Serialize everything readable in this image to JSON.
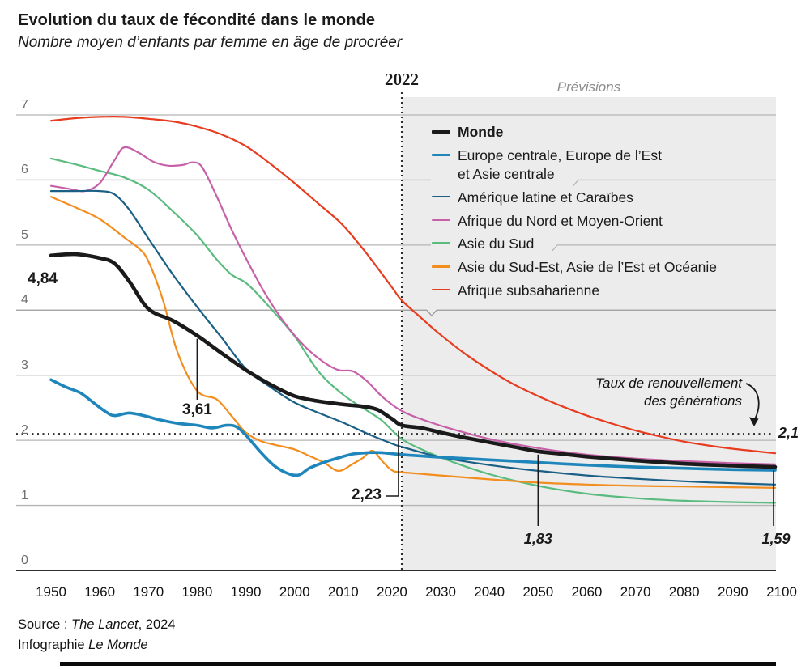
{
  "header": {
    "title": "Evolution du taux de fécondité dans le monde",
    "subtitle": "Nombre moyen d’enfants par femme en âge de procréer"
  },
  "chart_data": {
    "type": "line",
    "title": "Evolution du taux de fécondité dans le monde",
    "subtitle": "Nombre moyen d’enfants par femme en âge de procréer",
    "x_axis": {
      "range": [
        1950,
        2100
      ],
      "ticks": [
        1950,
        1960,
        1970,
        1980,
        1990,
        2000,
        2010,
        2020,
        2030,
        2040,
        2050,
        2060,
        2070,
        2080,
        2090,
        2100
      ]
    },
    "y_axis": {
      "range": [
        0,
        7
      ],
      "ticks": [
        0,
        1,
        2,
        3,
        4,
        5,
        6,
        7
      ]
    },
    "grid": true,
    "forecast": {
      "marker_year_label": "2022",
      "start_year": 2022,
      "zone_label": "Prévisions"
    },
    "replacement_rate": {
      "value": 2.1,
      "value_label": "2,1",
      "note": "Taux de renouvellement\ndes générations"
    },
    "series": [
      {
        "name": "Afrique subsaharienne",
        "slug": "afrique-subsaharienne",
        "color": "#e73c1f",
        "width": 2.2,
        "points": [
          [
            1950,
            6.91
          ],
          [
            1955,
            6.95
          ],
          [
            1960,
            6.97
          ],
          [
            1965,
            6.97
          ],
          [
            1970,
            6.94
          ],
          [
            1975,
            6.9
          ],
          [
            1980,
            6.82
          ],
          [
            1985,
            6.7
          ],
          [
            1990,
            6.52
          ],
          [
            1995,
            6.25
          ],
          [
            2000,
            5.95
          ],
          [
            2005,
            5.63
          ],
          [
            2010,
            5.3
          ],
          [
            2015,
            4.85
          ],
          [
            2020,
            4.35
          ],
          [
            2022,
            4.15
          ],
          [
            2026,
            3.88
          ],
          [
            2030,
            3.62
          ],
          [
            2035,
            3.33
          ],
          [
            2040,
            3.08
          ],
          [
            2045,
            2.86
          ],
          [
            2050,
            2.68
          ],
          [
            2055,
            2.52
          ],
          [
            2060,
            2.38
          ],
          [
            2065,
            2.26
          ],
          [
            2070,
            2.15
          ],
          [
            2075,
            2.06
          ],
          [
            2080,
            1.98
          ],
          [
            2085,
            1.92
          ],
          [
            2090,
            1.87
          ],
          [
            2095,
            1.83
          ],
          [
            2100,
            1.8
          ]
        ]
      },
      {
        "name": "Asie du Sud",
        "slug": "asie-du-sud",
        "color": "#5abb7f",
        "width": 2.2,
        "points": [
          [
            1950,
            6.33
          ],
          [
            1955,
            6.24
          ],
          [
            1960,
            6.14
          ],
          [
            1965,
            6.04
          ],
          [
            1970,
            5.85
          ],
          [
            1975,
            5.52
          ],
          [
            1980,
            5.15
          ],
          [
            1984,
            4.78
          ],
          [
            1987,
            4.55
          ],
          [
            1990,
            4.42
          ],
          [
            1993,
            4.2
          ],
          [
            1996,
            3.95
          ],
          [
            2000,
            3.6
          ],
          [
            2005,
            3.05
          ],
          [
            2010,
            2.7
          ],
          [
            2015,
            2.45
          ],
          [
            2018,
            2.3
          ],
          [
            2022,
            2.02
          ],
          [
            2027,
            1.83
          ],
          [
            2032,
            1.68
          ],
          [
            2040,
            1.48
          ],
          [
            2050,
            1.3
          ],
          [
            2060,
            1.18
          ],
          [
            2070,
            1.11
          ],
          [
            2080,
            1.07
          ],
          [
            2090,
            1.05
          ],
          [
            2100,
            1.04
          ]
        ]
      },
      {
        "name": "Afrique du Nord et Moyen-Orient",
        "slug": "afrique-nord-moyen-orient",
        "color": "#c760a8",
        "width": 2.2,
        "points": [
          [
            1950,
            5.91
          ],
          [
            1954,
            5.86
          ],
          [
            1957,
            5.83
          ],
          [
            1960,
            5.95
          ],
          [
            1963,
            6.3
          ],
          [
            1965,
            6.5
          ],
          [
            1968,
            6.42
          ],
          [
            1971,
            6.28
          ],
          [
            1974,
            6.22
          ],
          [
            1977,
            6.23
          ],
          [
            1979,
            6.27
          ],
          [
            1981,
            6.2
          ],
          [
            1984,
            5.75
          ],
          [
            1987,
            5.25
          ],
          [
            1990,
            4.8
          ],
          [
            1994,
            4.25
          ],
          [
            1998,
            3.8
          ],
          [
            2002,
            3.45
          ],
          [
            2006,
            3.2
          ],
          [
            2009,
            3.08
          ],
          [
            2012,
            3.06
          ],
          [
            2015,
            2.9
          ],
          [
            2018,
            2.67
          ],
          [
            2022,
            2.45
          ],
          [
            2027,
            2.3
          ],
          [
            2032,
            2.18
          ],
          [
            2040,
            2.02
          ],
          [
            2050,
            1.88
          ],
          [
            2060,
            1.78
          ],
          [
            2070,
            1.72
          ],
          [
            2080,
            1.68
          ],
          [
            2090,
            1.65
          ],
          [
            2100,
            1.63
          ]
        ]
      },
      {
        "name": "Amérique latine et Caraïbes",
        "slug": "amerique-latine-caraibes",
        "color": "#1a5f85",
        "width": 2.2,
        "points": [
          [
            1950,
            5.83
          ],
          [
            1955,
            5.83
          ],
          [
            1960,
            5.83
          ],
          [
            1963,
            5.78
          ],
          [
            1966,
            5.55
          ],
          [
            1970,
            5.1
          ],
          [
            1975,
            4.55
          ],
          [
            1980,
            4.05
          ],
          [
            1985,
            3.58
          ],
          [
            1990,
            3.1
          ],
          [
            1995,
            2.82
          ],
          [
            2000,
            2.58
          ],
          [
            2005,
            2.42
          ],
          [
            2010,
            2.27
          ],
          [
            2015,
            2.1
          ],
          [
            2020,
            1.95
          ],
          [
            2022,
            1.9
          ],
          [
            2030,
            1.74
          ],
          [
            2040,
            1.62
          ],
          [
            2050,
            1.53
          ],
          [
            2060,
            1.46
          ],
          [
            2070,
            1.41
          ],
          [
            2080,
            1.37
          ],
          [
            2090,
            1.34
          ],
          [
            2100,
            1.32
          ]
        ]
      },
      {
        "name": "Asie du Sud-Est, Asie de l’Est et Océanie",
        "slug": "asie-sud-est-est-oceanie",
        "color": "#f28d1e",
        "width": 2.2,
        "points": [
          [
            1950,
            5.74
          ],
          [
            1955,
            5.58
          ],
          [
            1960,
            5.4
          ],
          [
            1965,
            5.12
          ],
          [
            1968,
            4.95
          ],
          [
            1970,
            4.75
          ],
          [
            1973,
            4.15
          ],
          [
            1976,
            3.35
          ],
          [
            1980,
            2.76
          ],
          [
            1984,
            2.63
          ],
          [
            1987,
            2.38
          ],
          [
            1990,
            2.12
          ],
          [
            1993,
            1.99
          ],
          [
            1996,
            1.93
          ],
          [
            2000,
            1.86
          ],
          [
            2003,
            1.76
          ],
          [
            2006,
            1.66
          ],
          [
            2009,
            1.53
          ],
          [
            2012,
            1.64
          ],
          [
            2014,
            1.73
          ],
          [
            2016,
            1.84
          ],
          [
            2018,
            1.68
          ],
          [
            2020,
            1.54
          ],
          [
            2022,
            1.51
          ],
          [
            2030,
            1.46
          ],
          [
            2040,
            1.4
          ],
          [
            2050,
            1.35
          ],
          [
            2060,
            1.32
          ],
          [
            2070,
            1.3
          ],
          [
            2080,
            1.29
          ],
          [
            2090,
            1.28
          ],
          [
            2100,
            1.27
          ]
        ]
      },
      {
        "name": "Europe centrale, Europe de l’Est\net Asie centrale",
        "slug": "europe-centrale-est-asie-centrale",
        "color": "#1e86bb",
        "width": 3.6,
        "points": [
          [
            1950,
            2.93
          ],
          [
            1953,
            2.82
          ],
          [
            1956,
            2.73
          ],
          [
            1958,
            2.62
          ],
          [
            1961,
            2.45
          ],
          [
            1963,
            2.38
          ],
          [
            1966,
            2.42
          ],
          [
            1969,
            2.38
          ],
          [
            1972,
            2.32
          ],
          [
            1976,
            2.26
          ],
          [
            1980,
            2.23
          ],
          [
            1983,
            2.19
          ],
          [
            1986,
            2.23
          ],
          [
            1988,
            2.21
          ],
          [
            1990,
            2.08
          ],
          [
            1993,
            1.82
          ],
          [
            1996,
            1.6
          ],
          [
            1999,
            1.48
          ],
          [
            2001,
            1.47
          ],
          [
            2003,
            1.57
          ],
          [
            2006,
            1.66
          ],
          [
            2009,
            1.73
          ],
          [
            2012,
            1.79
          ],
          [
            2015,
            1.81
          ],
          [
            2018,
            1.81
          ],
          [
            2022,
            1.78
          ],
          [
            2030,
            1.74
          ],
          [
            2040,
            1.7
          ],
          [
            2050,
            1.66
          ],
          [
            2060,
            1.62
          ],
          [
            2070,
            1.59
          ],
          [
            2080,
            1.57
          ],
          [
            2090,
            1.55
          ],
          [
            2100,
            1.54
          ]
        ]
      },
      {
        "name": "Monde",
        "slug": "monde",
        "color": "#1a1a1a",
        "width": 4.6,
        "points": [
          [
            1950,
            4.84
          ],
          [
            1955,
            4.86
          ],
          [
            1960,
            4.8
          ],
          [
            1963,
            4.72
          ],
          [
            1966,
            4.45
          ],
          [
            1970,
            4.02
          ],
          [
            1975,
            3.84
          ],
          [
            1980,
            3.61
          ],
          [
            1985,
            3.34
          ],
          [
            1990,
            3.08
          ],
          [
            1995,
            2.86
          ],
          [
            2000,
            2.68
          ],
          [
            2005,
            2.6
          ],
          [
            2010,
            2.55
          ],
          [
            2014,
            2.52
          ],
          [
            2017,
            2.47
          ],
          [
            2020,
            2.33
          ],
          [
            2022,
            2.23
          ],
          [
            2026,
            2.19
          ],
          [
            2030,
            2.12
          ],
          [
            2035,
            2.04
          ],
          [
            2040,
            1.97
          ],
          [
            2045,
            1.9
          ],
          [
            2050,
            1.83
          ],
          [
            2055,
            1.79
          ],
          [
            2060,
            1.75
          ],
          [
            2070,
            1.69
          ],
          [
            2080,
            1.64
          ],
          [
            2090,
            1.61
          ],
          [
            2100,
            1.59
          ]
        ]
      }
    ],
    "annotations": [
      {
        "label": "4,84",
        "series": "Monde",
        "year": 1950,
        "value": 4.84,
        "style": "bold"
      },
      {
        "label": "3,61",
        "series": "Monde",
        "year": 1980,
        "value": 3.61,
        "style": "bold"
      },
      {
        "label": "2,23",
        "series": "Monde",
        "year": 2022,
        "value": 2.23,
        "style": "bold"
      },
      {
        "label": "1,83",
        "series": "Monde",
        "year": 2050,
        "value": 1.83,
        "style": "italic"
      },
      {
        "label": "1,59",
        "series": "Monde",
        "year": 2100,
        "value": 1.59,
        "style": "italic"
      }
    ]
  },
  "legend": {
    "items": [
      {
        "label": "Monde",
        "color": "#1a1a1a",
        "bold": true,
        "thick": 4
      },
      {
        "label": "Europe centrale, Europe de l’Est\net Asie centrale",
        "color": "#1e86bb",
        "bold": false,
        "thick": 3.5
      },
      {
        "label": "Amérique latine et Caraïbes",
        "color": "#1a5f85",
        "bold": false,
        "thick": 2.5
      },
      {
        "label": "Afrique du Nord et Moyen-Orient",
        "color": "#c760a8",
        "bold": false,
        "thick": 2.5
      },
      {
        "label": "Asie du Sud",
        "color": "#5abb7f",
        "bold": false,
        "thick": 2.5
      },
      {
        "label": "Asie du Sud-Est, Asie de l’Est et Océanie",
        "color": "#f28d1e",
        "bold": false,
        "thick": 2.5
      },
      {
        "label": "Afrique subsaharienne",
        "color": "#e73c1f",
        "bold": false,
        "thick": 2.5
      }
    ]
  },
  "colors": {
    "forecast_zone": "#ececec",
    "grid": "#b5b5b5",
    "grid_dark": "#999999",
    "baseline": "#2e2e2e",
    "dotted": "#2b2b2b"
  },
  "footer": {
    "source_prefix": "Source : ",
    "source_name": "The Lancet",
    "source_suffix": ", 2024",
    "credit_prefix": "Infographie ",
    "credit_name": "Le Monde"
  }
}
